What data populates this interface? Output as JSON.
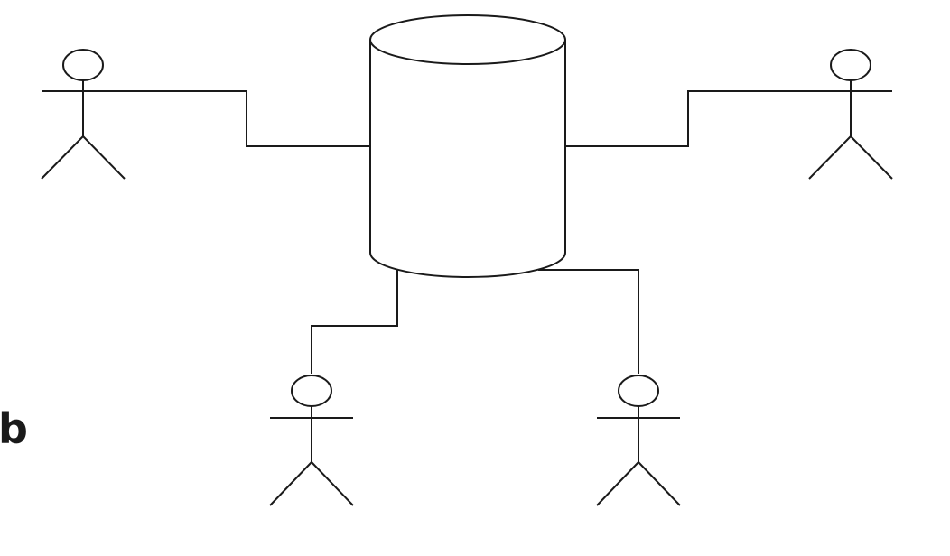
{
  "figure": {
    "panel_label": "b"
  },
  "nodes": {
    "database": {
      "icon": "database-cylinder-icon"
    },
    "actors": [
      {
        "id": "top-left",
        "icon": "stick-figure-actor-icon"
      },
      {
        "id": "top-right",
        "icon": "stick-figure-actor-icon"
      },
      {
        "id": "bottom-left",
        "icon": "stick-figure-actor-icon"
      },
      {
        "id": "bottom-right",
        "icon": "stick-figure-actor-icon"
      }
    ]
  },
  "connections": [
    {
      "from": "top-left",
      "to": "database"
    },
    {
      "from": "top-right",
      "to": "database"
    },
    {
      "from": "bottom-left",
      "to": "database"
    },
    {
      "from": "bottom-right",
      "to": "database"
    }
  ],
  "colors": {
    "line": "#1a1a1a",
    "background": "#ffffff"
  }
}
